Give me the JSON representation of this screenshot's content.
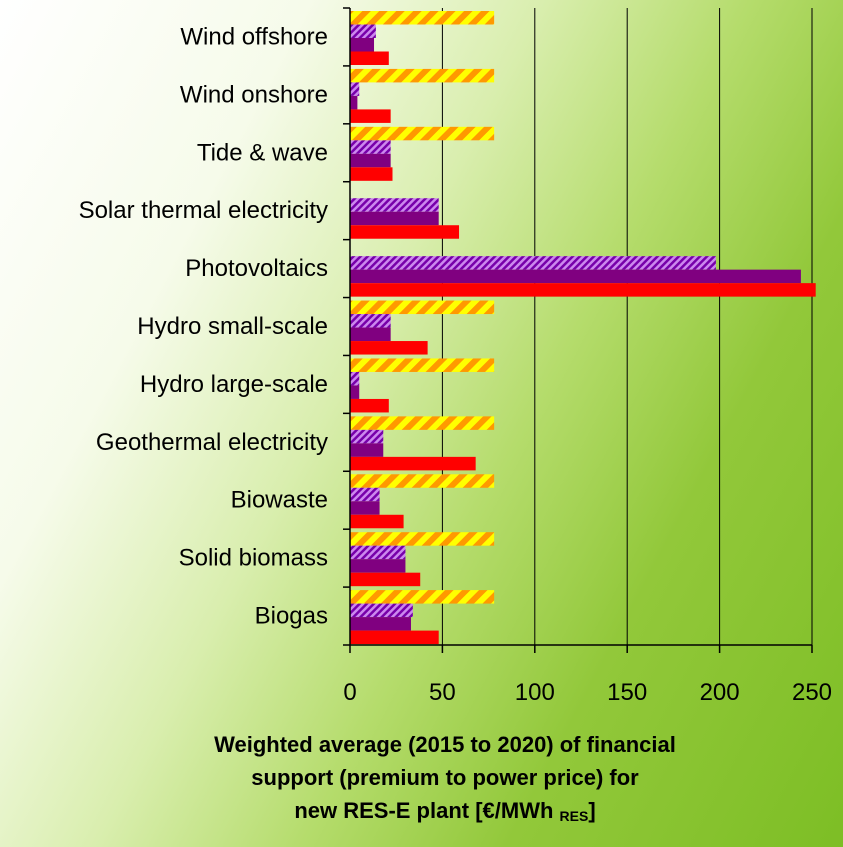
{
  "chart_data": {
    "type": "bar",
    "orientation": "horizontal",
    "categories": [
      "Wind offshore",
      "Wind onshore",
      "Tide & wave",
      "Solar thermal electricity",
      "Photovoltaics",
      "Hydro small-scale",
      "Hydro large-scale",
      "Geothermal electricity",
      "Biowaste",
      "Solid biomass",
      "Biogas"
    ],
    "series": [
      {
        "values": [
          78,
          78,
          78,
          0,
          0,
          78,
          78,
          78,
          78,
          78,
          78
        ],
        "color": "#ffff00",
        "stripe_color": "#ff9900",
        "pattern": "diagonal-stripes"
      },
      {
        "values": [
          14,
          5,
          22,
          48,
          198,
          22,
          5,
          18,
          16,
          30,
          34
        ],
        "color": "#cc88ee",
        "stripe_color": "#7700aa",
        "pattern": "diagonal-stripes"
      },
      {
        "values": [
          13,
          4,
          22,
          48,
          244,
          22,
          5,
          18,
          16,
          30,
          33
        ],
        "color": "#800080",
        "pattern": "solid"
      },
      {
        "values": [
          21,
          22,
          23,
          59,
          252,
          42,
          21,
          68,
          29,
          38,
          48
        ],
        "color": "#ff0000",
        "pattern": "solid"
      }
    ],
    "xlim": [
      0,
      250
    ],
    "x_ticks": [
      0,
      50,
      100,
      150,
      200,
      250
    ],
    "grid": true,
    "legend": "none",
    "xlabel": {
      "line1": "Weighted average (2015 to 2020) of financial",
      "line2": "support (premium to power price) for",
      "line3_main": "new RES-E plant [€/MWh ",
      "line3_sub": "RES",
      "line3_end": "]"
    }
  }
}
